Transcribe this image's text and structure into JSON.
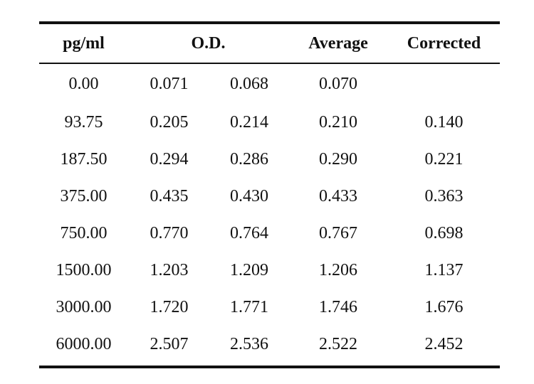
{
  "table": {
    "headers": {
      "concentration": "pg/ml",
      "od": "O.D.",
      "average": "Average",
      "corrected": "Corrected"
    },
    "rows": [
      {
        "conc": "0.00",
        "od1": "0.071",
        "od2": "0.068",
        "avg": "0.070",
        "corr": ""
      },
      {
        "conc": "93.75",
        "od1": "0.205",
        "od2": "0.214",
        "avg": "0.210",
        "corr": "0.140"
      },
      {
        "conc": "187.50",
        "od1": "0.294",
        "od2": "0.286",
        "avg": "0.290",
        "corr": "0.221"
      },
      {
        "conc": "375.00",
        "od1": "0.435",
        "od2": "0.430",
        "avg": "0.433",
        "corr": "0.363"
      },
      {
        "conc": "750.00",
        "od1": "0.770",
        "od2": "0.764",
        "avg": "0.767",
        "corr": "0.698"
      },
      {
        "conc": "1500.00",
        "od1": "1.203",
        "od2": "1.209",
        "avg": "1.206",
        "corr": "1.137"
      },
      {
        "conc": "3000.00",
        "od1": "1.720",
        "od2": "1.771",
        "avg": "1.746",
        "corr": "1.676"
      },
      {
        "conc": "6000.00",
        "od1": "2.507",
        "od2": "2.536",
        "avg": "2.522",
        "corr": "2.452"
      }
    ]
  }
}
